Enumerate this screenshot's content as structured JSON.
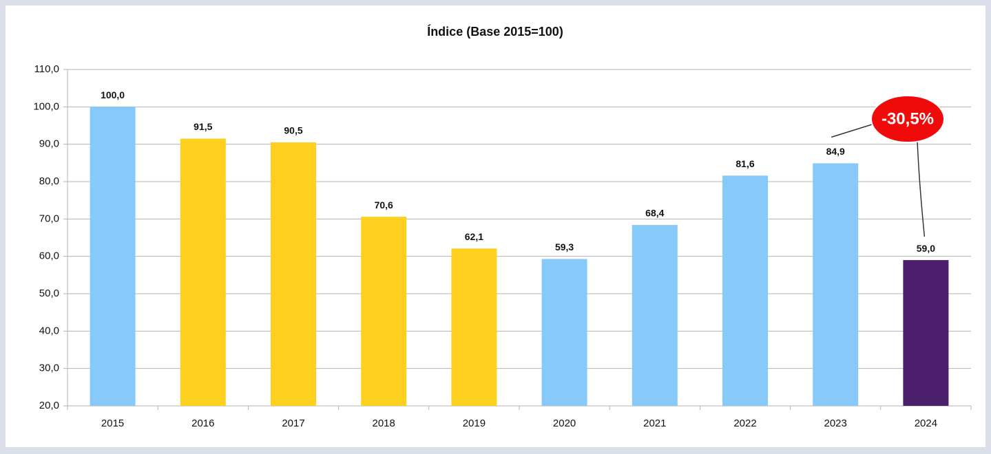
{
  "chart_data": {
    "type": "bar",
    "title": "Índice (Base 2015=100)",
    "categories": [
      "2015",
      "2016",
      "2017",
      "2018",
      "2019",
      "2020",
      "2021",
      "2022",
      "2023",
      "2024"
    ],
    "values": [
      100.0,
      91.5,
      90.5,
      70.6,
      62.1,
      59.3,
      68.4,
      81.6,
      84.9,
      59.0
    ],
    "value_labels": [
      "100,0",
      "91,5",
      "90,5",
      "70,6",
      "62,1",
      "59,3",
      "68,4",
      "81,6",
      "84,9",
      "59,0"
    ],
    "colors": [
      "#87cafa",
      "#fdd020",
      "#fdd020",
      "#fdd020",
      "#fdd020",
      "#87cafa",
      "#87cafa",
      "#87cafa",
      "#87cafa",
      "#4b1f6b"
    ],
    "ylim": [
      20,
      110
    ],
    "yticks": [
      {
        "value": 20,
        "label": "20,0"
      },
      {
        "value": 30,
        "label": "30,0"
      },
      {
        "value": 40,
        "label": "40,0"
      },
      {
        "value": 50,
        "label": "50,0"
      },
      {
        "value": 60,
        "label": "60,0"
      },
      {
        "value": 70,
        "label": "70,0"
      },
      {
        "value": 80,
        "label": "80,0"
      },
      {
        "value": 90,
        "label": "90,0"
      },
      {
        "value": 100,
        "label": "100,0"
      },
      {
        "value": 110,
        "label": "110,0"
      }
    ],
    "grid": true,
    "annotation": "-30,5%"
  }
}
